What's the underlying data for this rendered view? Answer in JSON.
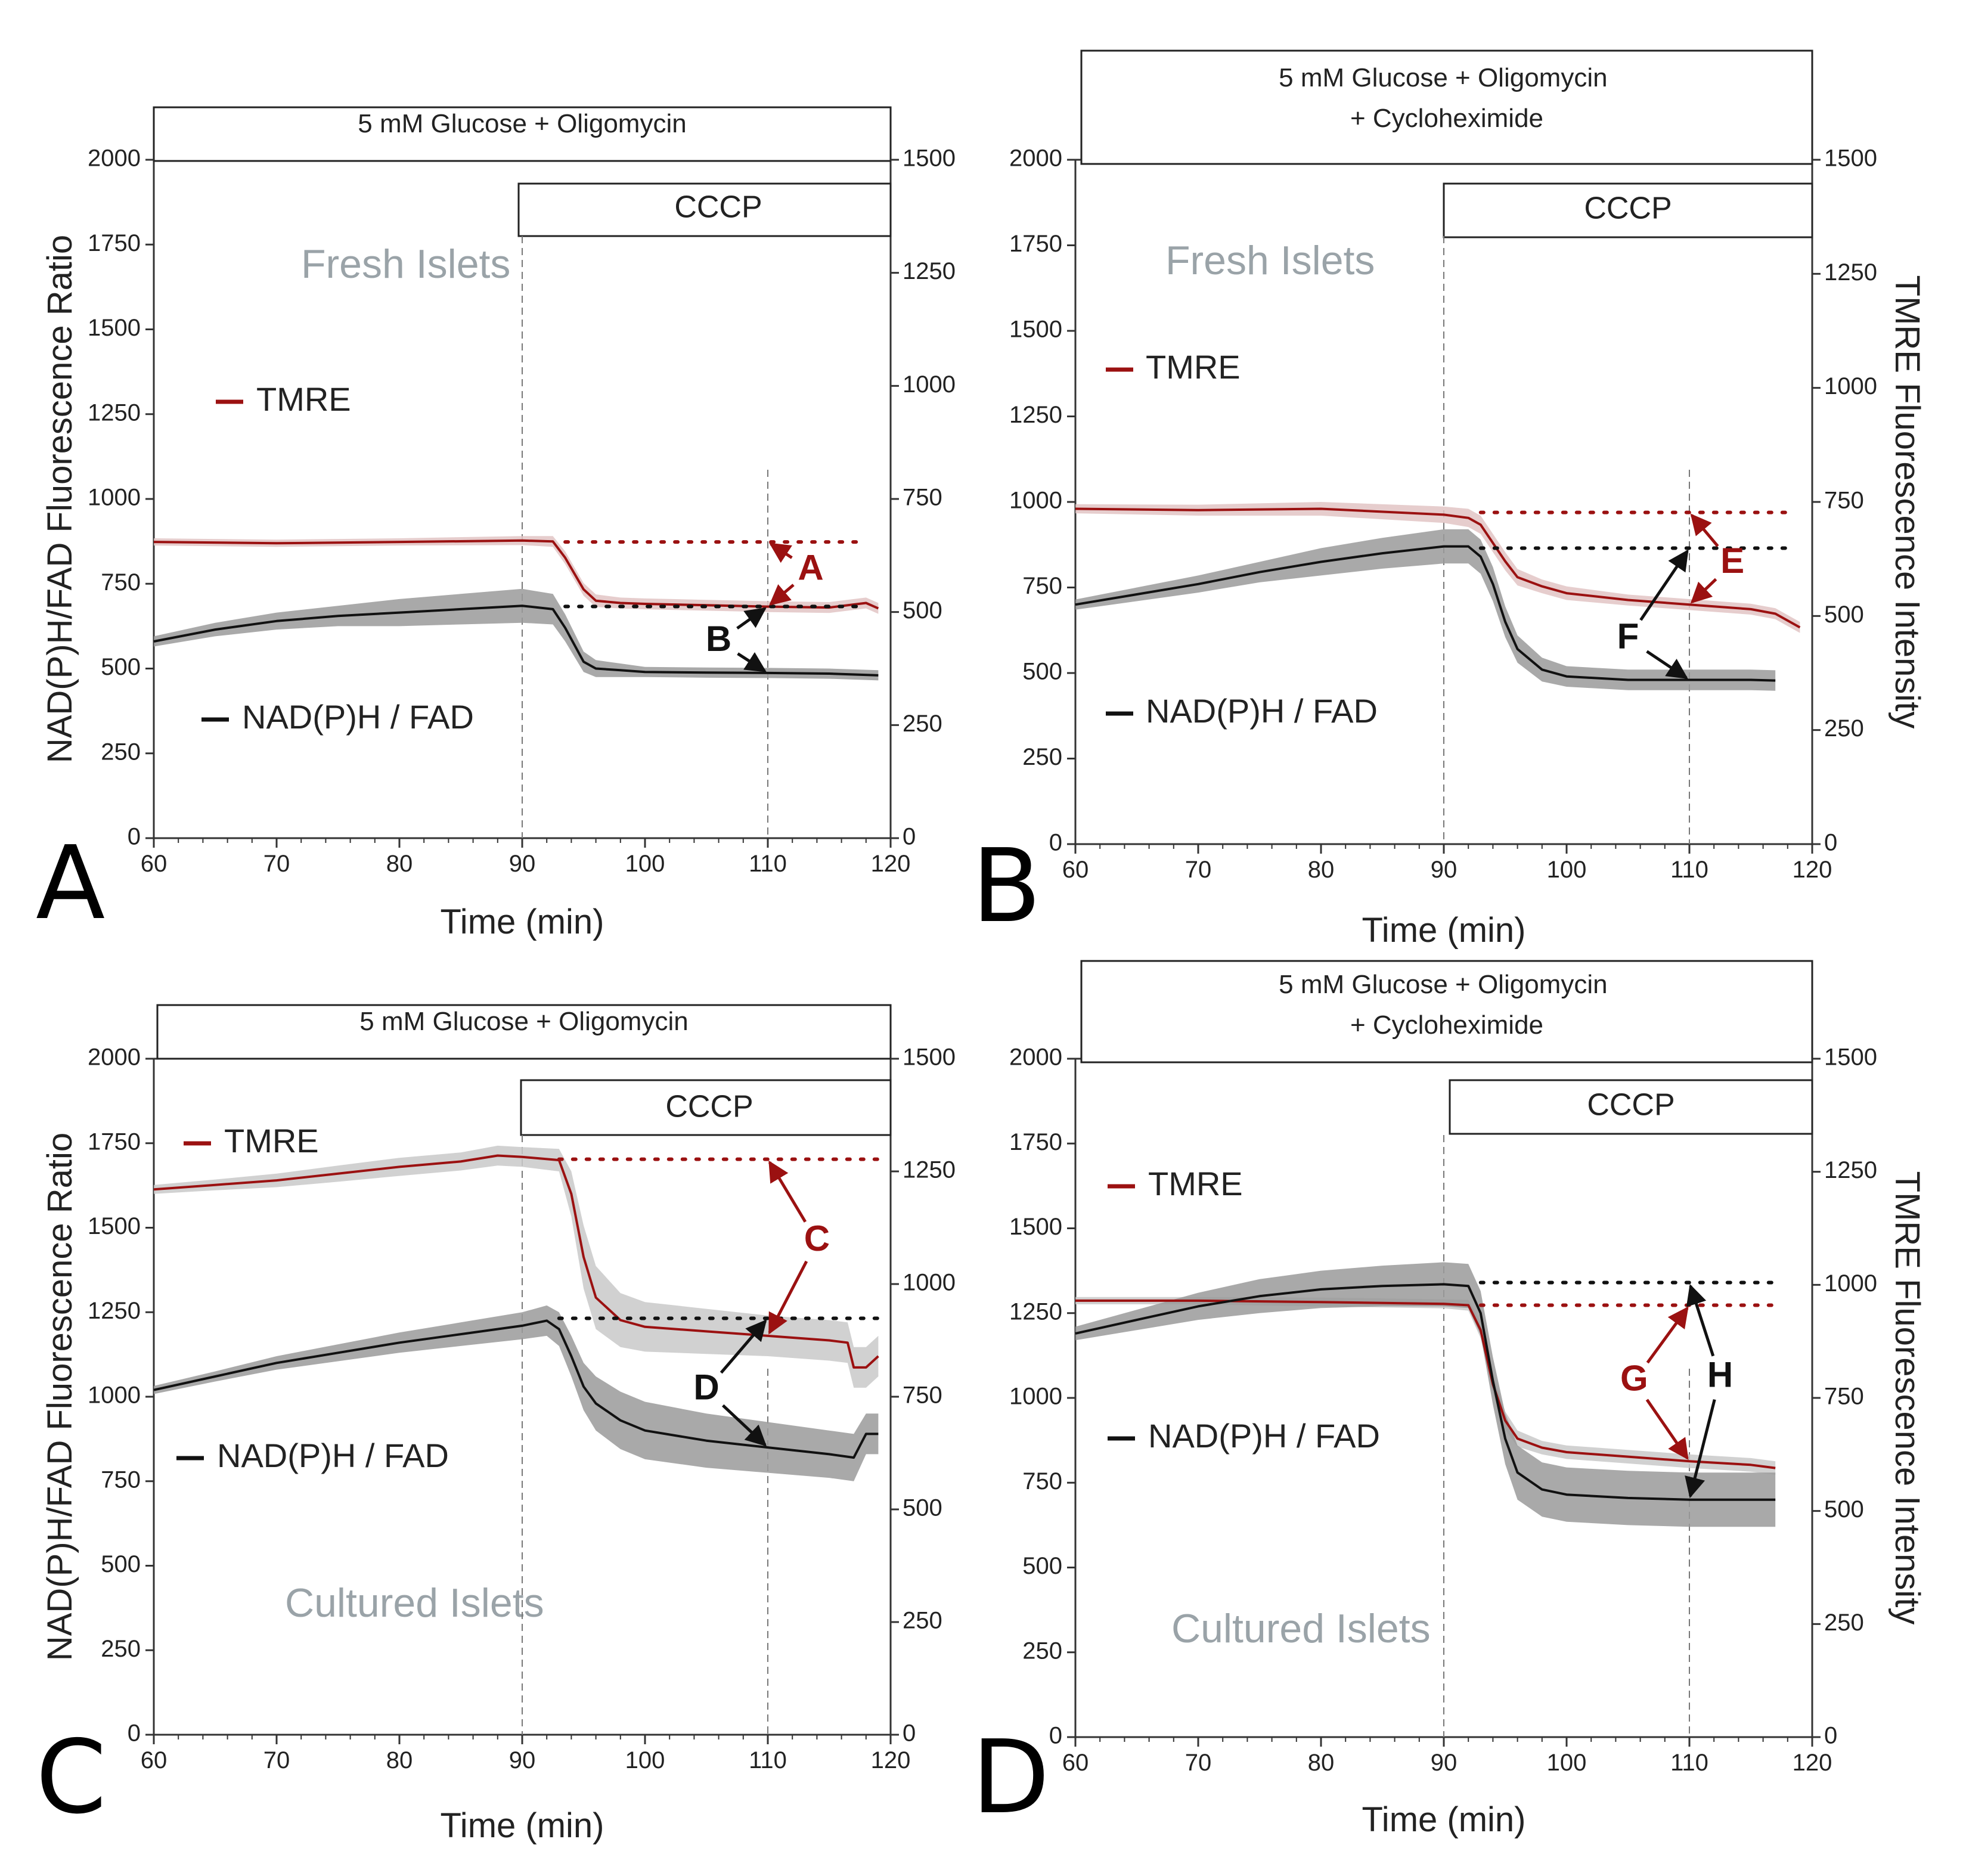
{
  "figure": {
    "colors": {
      "tmre": "#9b1111",
      "nadph": "#111111",
      "tmre_band": "#e2c4c4",
      "tmre_band_cultured": "#c9c9c9",
      "nadph_band": "#9a9a9a",
      "islet_label": "#9aa3a8",
      "frame": "#333333"
    }
  },
  "chart_data": [
    {
      "type": "line",
      "panel": "A",
      "condition": "5 mM Glucose + Oligomycin",
      "treatment": "CCCP",
      "islets": "Fresh Islets",
      "xlabel": "Time (min)",
      "ylabel_left": "NAD(P)H/FAD Fluorescence Ratio",
      "ylabel_right": "",
      "xlim": [
        60,
        120
      ],
      "ylim_left": [
        0,
        2000
      ],
      "ylim_right": [
        0,
        1500
      ],
      "xticks": [
        "60",
        "70",
        "80",
        "90",
        "100",
        "110",
        "120"
      ],
      "yticks_left": [
        "0",
        "250",
        "500",
        "750",
        "1000",
        "1250",
        "1500",
        "1750",
        "2000"
      ],
      "yticks_right": [
        "0",
        "250",
        "500",
        "750",
        "1000",
        "1250",
        "1500"
      ],
      "treatment_start": 90,
      "marker_time": 110,
      "legend": {
        "tmre": "TMRE",
        "nadph": "NAD(P)H / FAD"
      },
      "series": [
        {
          "name": "TMRE",
          "axis": "right",
          "x": [
            60,
            70,
            80,
            90,
            92.5,
            93.5,
            95,
            96,
            98,
            100,
            105,
            110,
            115,
            118,
            119
          ],
          "y": [
            655,
            652,
            655,
            658,
            656,
            620,
            550,
            525,
            520,
            518,
            515,
            512,
            510,
            520,
            508
          ],
          "band": [
            8,
            8,
            8,
            10,
            12,
            14,
            14,
            14,
            12,
            12,
            12,
            12,
            12,
            12,
            12
          ]
        },
        {
          "name": "NAD(P)H / FAD",
          "axis": "left",
          "x": [
            60,
            65,
            70,
            75,
            80,
            85,
            90,
            92.5,
            93.5,
            95,
            96,
            98,
            100,
            105,
            110,
            115,
            119
          ],
          "y": [
            580,
            615,
            640,
            655,
            665,
            675,
            685,
            675,
            620,
            520,
            500,
            495,
            490,
            488,
            487,
            485,
            480
          ],
          "band": [
            15,
            20,
            25,
            30,
            40,
            45,
            50,
            45,
            40,
            30,
            25,
            20,
            15,
            15,
            15,
            15,
            15
          ]
        }
      ],
      "references": [
        {
          "axis": "right",
          "y": 655,
          "x": [
            93.5,
            118
          ],
          "color": "tmre"
        },
        {
          "axis": "left",
          "y": 683,
          "x": [
            93.5,
            118
          ],
          "color": "nadph"
        }
      ],
      "annotations": [
        {
          "label": "A",
          "color": "tmre",
          "x": 113.5,
          "y_left": 790
        },
        {
          "label": "B",
          "color": "nadph",
          "x": 106,
          "y_left": 580
        }
      ]
    },
    {
      "type": "line",
      "panel": "B",
      "condition": "5 mM Glucose + Oligomycin\n+ Cycloheximide",
      "treatment": "CCCP",
      "islets": "Fresh Islets",
      "xlabel": "Time (min)",
      "ylabel_left": "",
      "ylabel_right": "TMRE Fluorescence Intensity",
      "xlim": [
        60,
        120
      ],
      "ylim_left": [
        0,
        2000
      ],
      "ylim_right": [
        0,
        1500
      ],
      "xticks": [
        "60",
        "70",
        "80",
        "90",
        "100",
        "110",
        "120"
      ],
      "yticks_left": [
        "0",
        "250",
        "500",
        "750",
        "1000",
        "1250",
        "1500",
        "1750",
        "2000"
      ],
      "yticks_right": [
        "0",
        "250",
        "500",
        "750",
        "1000",
        "1250",
        "1500"
      ],
      "treatment_start": 90,
      "marker_time": 110,
      "legend": {
        "tmre": "TMRE",
        "nadph": "NAD(P)H / FAD"
      },
      "series": [
        {
          "name": "TMRE",
          "axis": "right",
          "x": [
            60,
            70,
            80,
            90,
            92,
            93,
            95,
            96,
            98,
            100,
            105,
            110,
            115,
            117,
            119
          ],
          "y": [
            735,
            732,
            735,
            722,
            715,
            700,
            620,
            585,
            565,
            550,
            535,
            525,
            515,
            505,
            475
          ],
          "band": [
            10,
            12,
            15,
            18,
            20,
            20,
            20,
            18,
            15,
            15,
            12,
            12,
            12,
            12,
            12
          ]
        },
        {
          "name": "NAD(P)H / FAD",
          "axis": "left",
          "x": [
            60,
            65,
            70,
            75,
            80,
            85,
            90,
            92,
            93,
            94,
            95,
            96,
            98,
            100,
            105,
            110,
            115,
            117
          ],
          "y": [
            700,
            730,
            760,
            795,
            825,
            850,
            870,
            870,
            840,
            760,
            650,
            570,
            510,
            490,
            480,
            480,
            480,
            478
          ],
          "band": [
            15,
            20,
            25,
            30,
            40,
            45,
            50,
            50,
            50,
            50,
            45,
            40,
            35,
            30,
            30,
            30,
            30,
            30
          ]
        }
      ],
      "references": [
        {
          "axis": "right",
          "y": 727,
          "x": [
            93,
            118
          ],
          "color": "tmre"
        },
        {
          "axis": "left",
          "y": 865,
          "x": [
            93,
            118
          ],
          "color": "nadph"
        }
      ],
      "annotations": [
        {
          "label": "E",
          "color": "tmre",
          "x": 113.5,
          "y_left": 820
        },
        {
          "label": "F",
          "color": "nadph",
          "x": 105,
          "y_left": 600
        }
      ]
    },
    {
      "type": "line",
      "panel": "C",
      "condition": "5 mM Glucose + Oligomycin",
      "treatment": "CCCP",
      "islets": "Cultured Islets",
      "xlabel": "Time (min)",
      "ylabel_left": "NAD(P)H/FAD Fluorescence Ratio",
      "ylabel_right": "",
      "xlim": [
        60,
        120
      ],
      "ylim_left": [
        0,
        2000
      ],
      "ylim_right": [
        0,
        1500
      ],
      "xticks": [
        "60",
        "70",
        "80",
        "90",
        "100",
        "110",
        "120"
      ],
      "yticks_left": [
        "0",
        "250",
        "500",
        "750",
        "1000",
        "1250",
        "1500",
        "1750",
        "2000"
      ],
      "yticks_right": [
        "0",
        "250",
        "500",
        "750",
        "1000",
        "1250",
        "1500"
      ],
      "treatment_start": 90,
      "marker_time": 110,
      "legend": {
        "tmre": "TMRE",
        "nadph": "NAD(P)H / FAD"
      },
      "series": [
        {
          "name": "TMRE",
          "axis": "right",
          "x": [
            60,
            65,
            70,
            75,
            80,
            85,
            88,
            90,
            93,
            94,
            95,
            96,
            98,
            100,
            105,
            110,
            115,
            116.5,
            117,
            118,
            119
          ],
          "y": [
            1210,
            1220,
            1230,
            1245,
            1260,
            1272,
            1285,
            1282,
            1275,
            1200,
            1060,
            970,
            920,
            905,
            895,
            885,
            875,
            870,
            815,
            815,
            840
          ],
          "band": [
            10,
            12,
            15,
            18,
            20,
            20,
            22,
            22,
            25,
            50,
            70,
            70,
            60,
            55,
            50,
            45,
            45,
            45,
            45,
            45,
            45
          ]
        },
        {
          "name": "NAD(P)H / FAD",
          "axis": "left",
          "x": [
            60,
            65,
            70,
            75,
            80,
            85,
            90,
            92,
            93,
            94,
            95,
            96,
            98,
            100,
            105,
            110,
            115,
            117,
            118,
            119
          ],
          "y": [
            1020,
            1060,
            1100,
            1130,
            1160,
            1185,
            1210,
            1225,
            1200,
            1120,
            1030,
            980,
            930,
            900,
            870,
            850,
            830,
            820,
            890,
            890
          ],
          "band": [
            12,
            15,
            20,
            25,
            30,
            35,
            40,
            45,
            50,
            60,
            70,
            80,
            85,
            85,
            80,
            75,
            70,
            70,
            60,
            60
          ]
        }
      ],
      "references": [
        {
          "axis": "right",
          "y": 1277,
          "x": [
            93,
            119
          ],
          "color": "tmre"
        },
        {
          "axis": "left",
          "y": 1232,
          "x": [
            93,
            119
          ],
          "color": "nadph"
        }
      ],
      "annotations": [
        {
          "label": "C",
          "color": "tmre",
          "x": 114,
          "y_left": 1460
        },
        {
          "label": "D",
          "color": "nadph",
          "x": 105,
          "y_left": 1020
        }
      ]
    },
    {
      "type": "line",
      "panel": "D",
      "condition": "5 mM Glucose + Oligomycin\n+ Cycloheximide",
      "treatment": "CCCP",
      "islets": "Cultured Islets",
      "xlabel": "Time (min)",
      "ylabel_left": "",
      "ylabel_right": "TMRE Fluorescence Intensity",
      "xlim": [
        60,
        120
      ],
      "ylim_left": [
        0,
        2000
      ],
      "ylim_right": [
        0,
        1500
      ],
      "xticks": [
        "60",
        "70",
        "80",
        "90",
        "100",
        "110",
        "120"
      ],
      "yticks_left": [
        "0",
        "250",
        "500",
        "750",
        "1000",
        "1250",
        "1500",
        "1750",
        "2000"
      ],
      "yticks_right": [
        "0",
        "250",
        "500",
        "750",
        "1000",
        "1250",
        "1500"
      ],
      "treatment_start": 90,
      "marker_time": 110,
      "legend": {
        "tmre": "TMRE",
        "nadph": "NAD(P)H / FAD"
      },
      "series": [
        {
          "name": "TMRE",
          "axis": "right",
          "x": [
            60,
            70,
            80,
            90,
            92,
            93,
            94,
            95,
            96,
            98,
            100,
            105,
            110,
            115,
            117
          ],
          "y": [
            965,
            965,
            962,
            958,
            955,
            900,
            780,
            700,
            660,
            640,
            630,
            620,
            610,
            602,
            595
          ],
          "band": [
            8,
            8,
            10,
            10,
            12,
            18,
            20,
            20,
            18,
            15,
            15,
            15,
            15,
            15,
            15
          ]
        },
        {
          "name": "NAD(P)H / FAD",
          "axis": "left",
          "x": [
            60,
            65,
            70,
            75,
            80,
            85,
            90,
            92,
            93,
            94,
            95,
            96,
            98,
            100,
            105,
            110,
            115,
            117
          ],
          "y": [
            1190,
            1230,
            1270,
            1300,
            1320,
            1330,
            1335,
            1330,
            1250,
            1050,
            880,
            780,
            730,
            715,
            705,
            700,
            700,
            700
          ],
          "band": [
            20,
            30,
            40,
            50,
            55,
            60,
            65,
            65,
            65,
            70,
            75,
            80,
            80,
            80,
            80,
            80,
            80,
            80
          ]
        }
      ],
      "references": [
        {
          "axis": "right",
          "y": 955,
          "x": [
            93,
            117
          ],
          "color": "tmre"
        },
        {
          "axis": "left",
          "y": 1340,
          "x": [
            93,
            117
          ],
          "color": "nadph"
        }
      ],
      "annotations": [
        {
          "label": "G",
          "color": "tmre",
          "x": 105.5,
          "y_left": 1050
        },
        {
          "label": "H",
          "color": "nadph",
          "x": 112.5,
          "y_left": 1060
        }
      ]
    }
  ]
}
